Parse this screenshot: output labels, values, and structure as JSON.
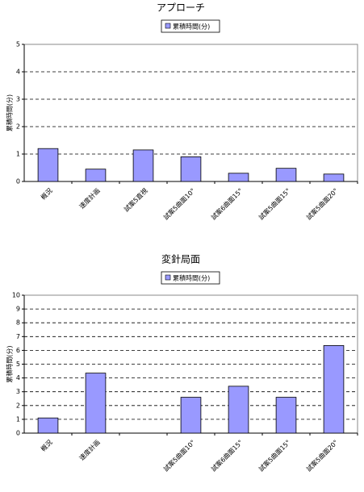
{
  "chart_data": [
    {
      "type": "bar",
      "title": "アプローチ",
      "y_label": "累積時間(分)",
      "categories": [
        "概況",
        "速度計画",
        "試案5直視",
        "試案5曲面10°",
        "試案6曲面15°",
        "試案5曲面15°",
        "試案5曲面20°"
      ],
      "series": [
        {
          "name": "累積時間(分)",
          "color": "#9999ff",
          "values": [
            1.2,
            0.45,
            1.15,
            0.9,
            0.3,
            0.48,
            0.27
          ]
        }
      ],
      "ylim": [
        0,
        5
      ],
      "yticks": [
        0,
        1,
        2,
        3,
        4,
        5
      ],
      "grid": true
    },
    {
      "type": "bar",
      "title": "変針局面",
      "y_label": "累積時間(分)",
      "categories": [
        "概況",
        "速度計画",
        null,
        "試案5曲面10°",
        "試案6曲面15°",
        "試案5曲面15°",
        "試案5曲面20°"
      ],
      "series": [
        {
          "name": "累積時間(分)",
          "color": "#9999ff",
          "values": [
            1.1,
            4.35,
            null,
            2.6,
            3.4,
            2.6,
            6.35
          ]
        }
      ],
      "ylim": [
        0,
        10
      ],
      "yticks": [
        0,
        1,
        2,
        3,
        4,
        5,
        6,
        7,
        8,
        9,
        10
      ],
      "grid": true
    }
  ]
}
